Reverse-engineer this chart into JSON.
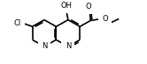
{
  "figsize": [
    1.66,
    0.73
  ],
  "dpi": 100,
  "xlim": [
    0,
    166
  ],
  "ylim": [
    0,
    73
  ],
  "bg_color": "white",
  "lw": 1.2,
  "lc": "black",
  "doff": 1.6,
  "shorten": 0.18,
  "bl": 15.5,
  "lcx": 50,
  "lcy": 36,
  "fs": 6.0
}
